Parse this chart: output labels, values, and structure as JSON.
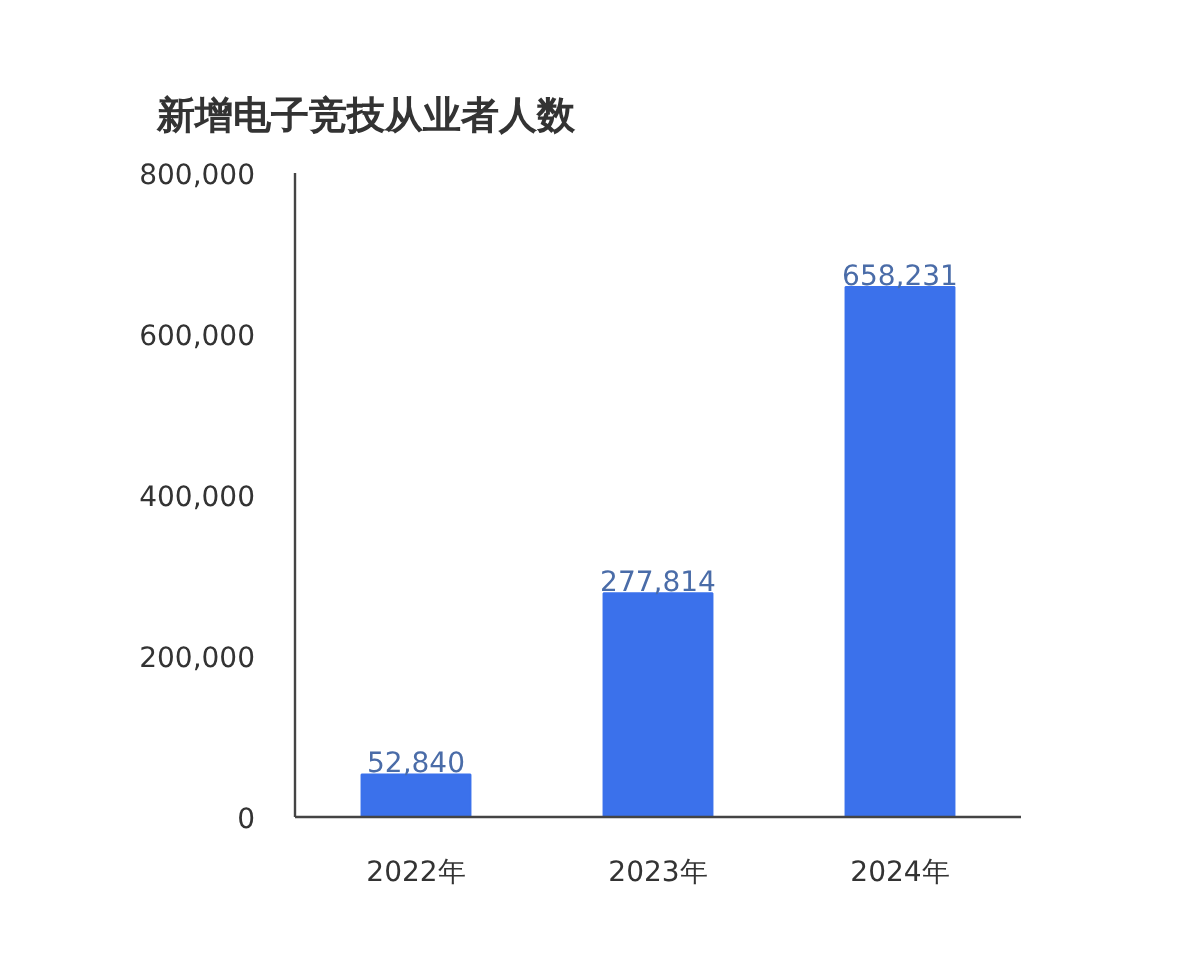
{
  "chart_data": {
    "type": "bar",
    "title": "新增电子竞技从业者人数",
    "categories": [
      "2022年",
      "2023年",
      "2024年"
    ],
    "values": [
      52840,
      277814,
      658231
    ],
    "color": "#3b71eb",
    "value_labels": [
      "52,840",
      "277,814",
      "658,231"
    ],
    "ylim": [
      0,
      800000
    ],
    "yticks": [
      0,
      {
        "value": 200000,
        "label": "200,000"
      },
      {
        "value": 400000,
        "label": "400,000"
      },
      {
        "value": 600000,
        "label": "600,000"
      },
      {
        "value": 800000,
        "label": "800,000"
      }
    ],
    "grid": false
  }
}
